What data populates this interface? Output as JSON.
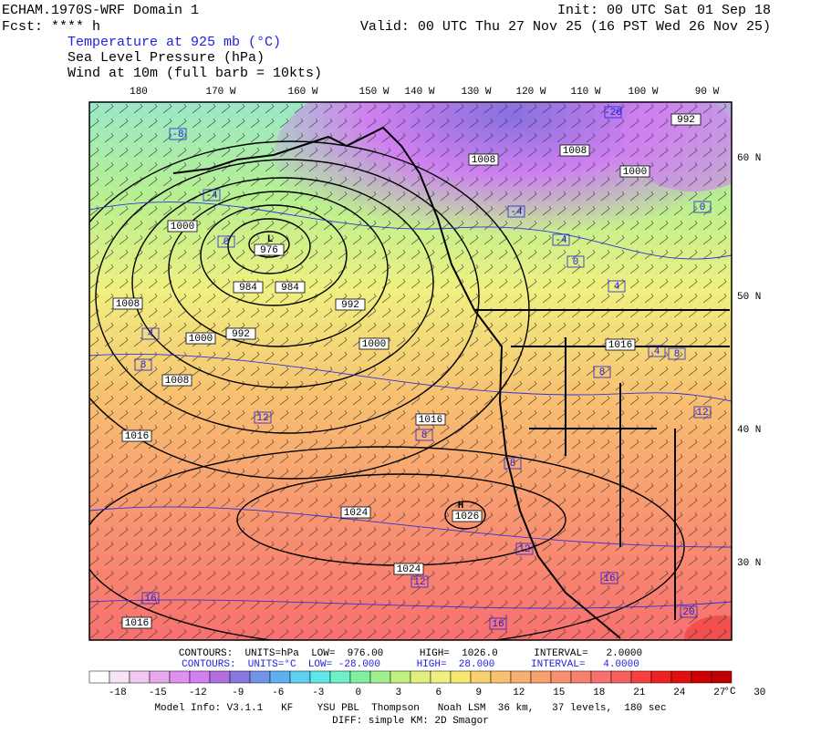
{
  "header": {
    "title": "ECHAM.1970S-WRF Domain 1",
    "fcst": "Fcst: **** h",
    "init": "Init: 00 UTC Sat 01 Sep 18",
    "valid": "Valid: 00 UTC Thu 27 Nov 25 (16 PST Wed 26 Nov 25)",
    "fields": [
      "Temperature at 925 mb (°C)",
      "Sea Level Pressure (hPa)",
      "Wind at 10m (full barb = 10kts)"
    ]
  },
  "map": {
    "lon_labels": [
      "180",
      "170 W",
      "160 W",
      "150 W",
      "140 W",
      "130 W",
      "120 W",
      "110 W",
      "100 W",
      "90 W"
    ],
    "lat_labels": [
      "60 N",
      "50 N",
      "40 N",
      "30 N"
    ],
    "pressure_labels": [
      "976",
      "984",
      "984",
      "992",
      "1000",
      "1000",
      "1008",
      "1000",
      "992",
      "1008",
      "1016",
      "1016",
      "1024",
      "1026",
      "1024",
      "1016",
      "1016",
      "1008",
      "1008",
      "1000",
      "992"
    ],
    "temperature_labels": [
      "-8",
      "-4",
      "0",
      "4",
      "8",
      "12",
      "8",
      "8",
      "12",
      "12",
      "16",
      "16",
      "16",
      "20",
      "4",
      "0",
      "-4",
      "0",
      "-4",
      "8",
      "4",
      "8",
      "12",
      "-20"
    ],
    "centers": [
      "L",
      "H"
    ]
  },
  "footer": {
    "contours_slp": "CONTOURS:  UNITS=hPa  LOW=  976.00      HIGH=  1026.0      INTERVAL=   2.0000",
    "contours_t": "CONTOURS:  UNITS=°C  LOW= -28.000      HIGH=  28.000      INTERVAL=   4.0000",
    "model_info": "Model Info: V3.1.1   KF    YSU PBL  Thompson   Noah LSM  36 km,   37 levels,  180 sec",
    "diff": "DIFF: simple KM: 2D Smagor"
  },
  "colorbar": {
    "colors": [
      "#ffffff",
      "#f4e4f4",
      "#f0c8f0",
      "#e8a8ec",
      "#e090f0",
      "#d080f0",
      "#b070e0",
      "#8878e0",
      "#7094e8",
      "#60b0f0",
      "#60d0f0",
      "#60e8e8",
      "#70f0c8",
      "#80f0a0",
      "#a0f090",
      "#c0f080",
      "#e0f080",
      "#f0f080",
      "#f8e870",
      "#f8d070",
      "#f8c070",
      "#f8b070",
      "#f8a070",
      "#f89070",
      "#f88070",
      "#f87070",
      "#f86060",
      "#f84040",
      "#f02020",
      "#e01010",
      "#d00000",
      "#c00000"
    ],
    "ticks": [
      -18,
      -15,
      -12,
      -9,
      -6,
      -3,
      0,
      3,
      6,
      9,
      12,
      15,
      18,
      21,
      24,
      27,
      30
    ],
    "unit": "°C"
  }
}
